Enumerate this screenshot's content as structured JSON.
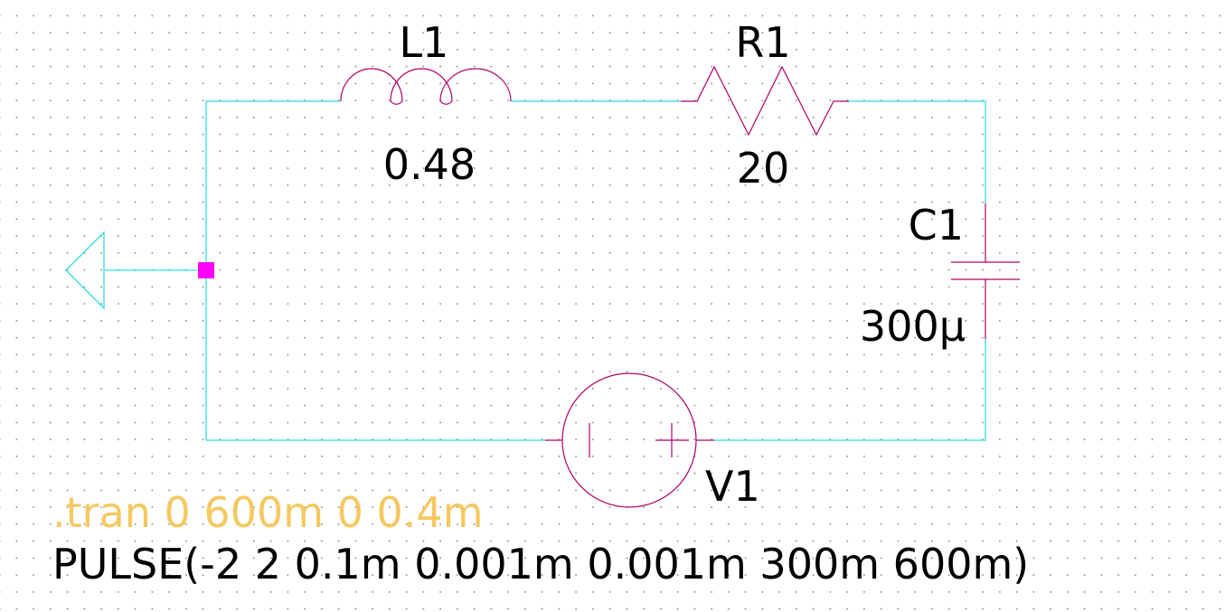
{
  "components": {
    "inductor": {
      "ref": "L1",
      "value": "0.48"
    },
    "resistor": {
      "ref": "R1",
      "value": "20"
    },
    "capacitor": {
      "ref": "C1",
      "value": "300µ"
    },
    "source": {
      "ref": "V1",
      "value": "PULSE(-2 2 0.1m 0.001m 0.001m 300m 600m)"
    }
  },
  "directive": ".tran 0 600m 0 0.4m",
  "colors": {
    "wire": "#33dddd",
    "component": "#b0006a",
    "node": "#ff00ff",
    "directive": "#f5c860",
    "text": "#000000"
  }
}
